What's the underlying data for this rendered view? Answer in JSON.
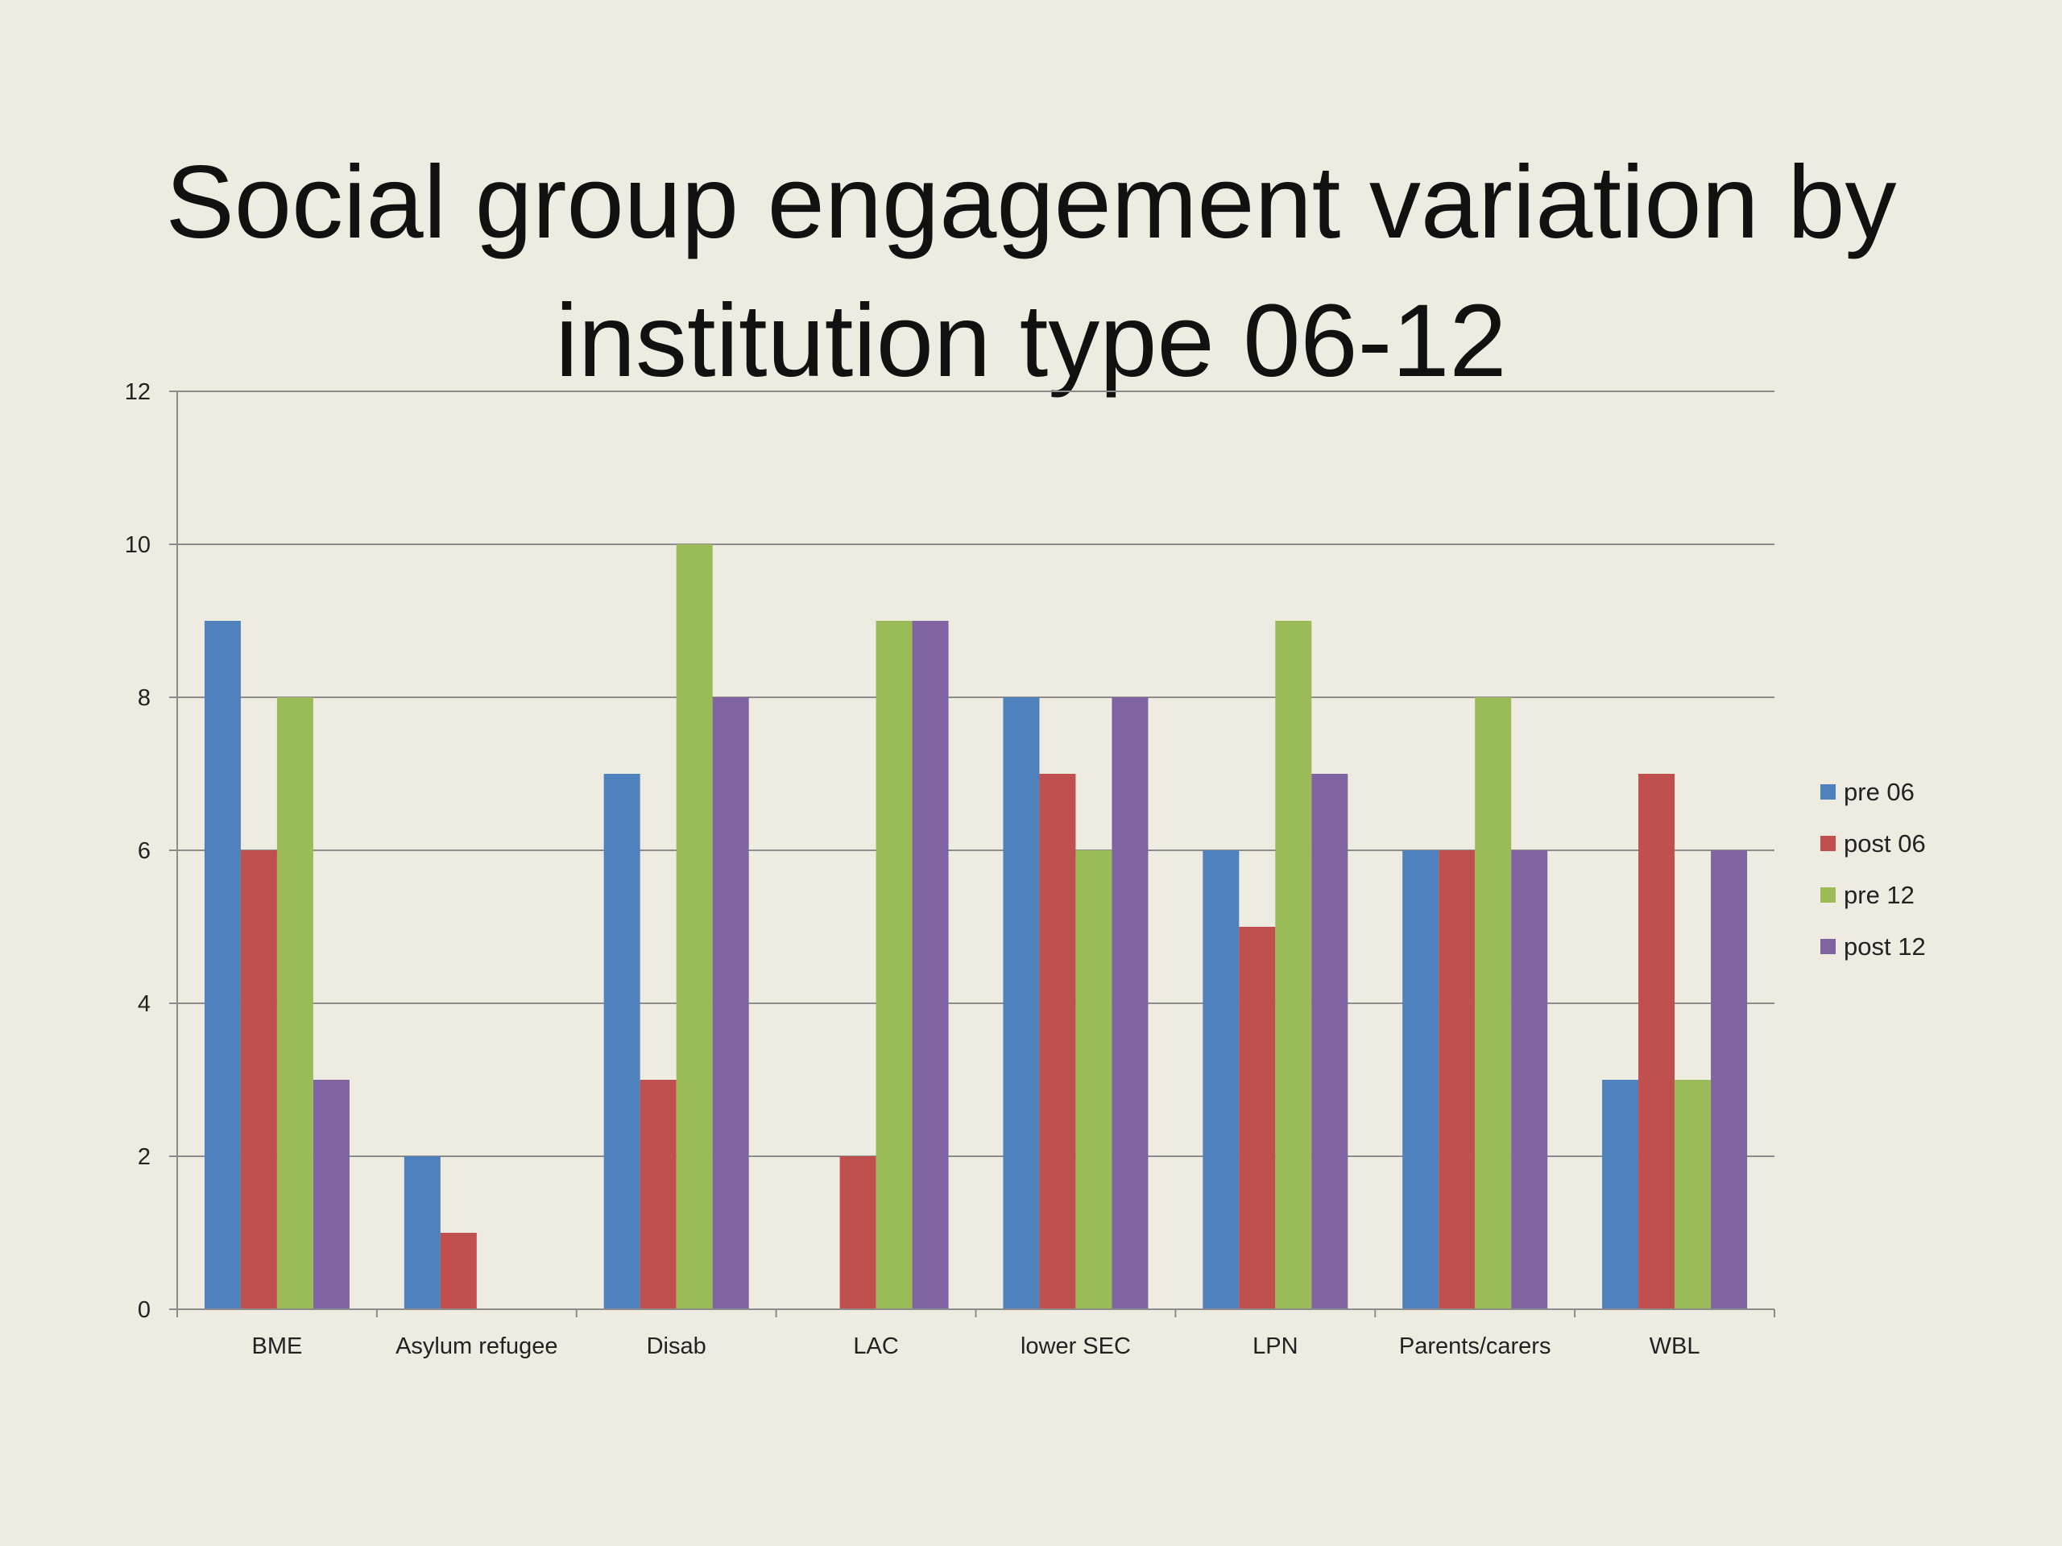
{
  "slide": {
    "title_line1": "Social group engagement variation by",
    "title_line2": "institution type 06-12"
  },
  "chart_data": {
    "type": "bar",
    "title": "Social group engagement variation by institution type 06-12",
    "xlabel": "",
    "ylabel": "",
    "ylim": [
      0,
      12
    ],
    "yticks": [
      0,
      2,
      4,
      6,
      8,
      10,
      12
    ],
    "grid": true,
    "legend_position": "right",
    "categories": [
      "BME",
      "Asylum refugee",
      "Disab",
      "LAC",
      "lower SEC",
      "LPN",
      "Parents/carers",
      "WBL"
    ],
    "series": [
      {
        "name": "pre 06",
        "color": "#4f81bd",
        "values": [
          9,
          2,
          7,
          0,
          8,
          6,
          6,
          3
        ]
      },
      {
        "name": "post 06",
        "color": "#c0504d",
        "values": [
          6,
          1,
          3,
          2,
          7,
          5,
          6,
          7
        ]
      },
      {
        "name": "pre 12",
        "color": "#9bbb59",
        "values": [
          8,
          0,
          10,
          9,
          6,
          9,
          8,
          3
        ]
      },
      {
        "name": "post 12",
        "color": "#8064a2",
        "values": [
          3,
          0,
          8,
          9,
          8,
          7,
          6,
          6
        ]
      }
    ]
  }
}
